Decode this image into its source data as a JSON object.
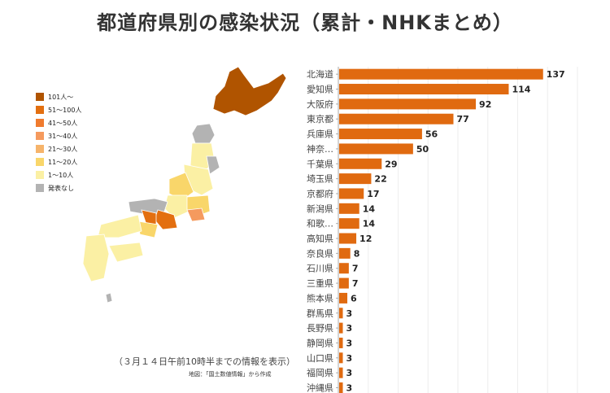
{
  "title": "都道府県別の感染状況（累計・NHKまとめ）",
  "legend": {
    "items": [
      {
        "label": "101人〜",
        "color": "#b05400"
      },
      {
        "label": "51〜100人",
        "color": "#e36f10"
      },
      {
        "label": "41〜50人",
        "color": "#f07b2e"
      },
      {
        "label": "31〜40人",
        "color": "#f59a5e"
      },
      {
        "label": "21〜30人",
        "color": "#f6b46b"
      },
      {
        "label": "11〜20人",
        "color": "#f9d66a"
      },
      {
        "label": "1〜10人",
        "color": "#fbf0a4"
      },
      {
        "label": "発表なし",
        "color": "#b3b3b3"
      }
    ]
  },
  "notes": {
    "date": "（３月１４日午前10時半までの情報を表示）",
    "source": "地図：「国土数値情報」から作成"
  },
  "colors": {
    "bar": "#e06a10",
    "grid": "#eeeeee",
    "axis": "#aaaaaa"
  },
  "chart_data": {
    "type": "bar",
    "orientation": "horizontal",
    "categories": [
      "北海道",
      "愛知県",
      "大阪府",
      "東京都",
      "兵庫県",
      "神奈…",
      "千葉県",
      "埼玉県",
      "京都府",
      "新潟県",
      "和歌…",
      "高知県",
      "奈良県",
      "石川県",
      "三重県",
      "熊本県",
      "群馬県",
      "長野県",
      "静岡県",
      "山口県",
      "福岡県",
      "沖縄県"
    ],
    "values": [
      137,
      114,
      92,
      77,
      56,
      50,
      29,
      22,
      17,
      14,
      14,
      12,
      8,
      7,
      7,
      6,
      3,
      3,
      3,
      3,
      3,
      3
    ],
    "xlim": [
      0,
      160
    ],
    "grid": true
  }
}
